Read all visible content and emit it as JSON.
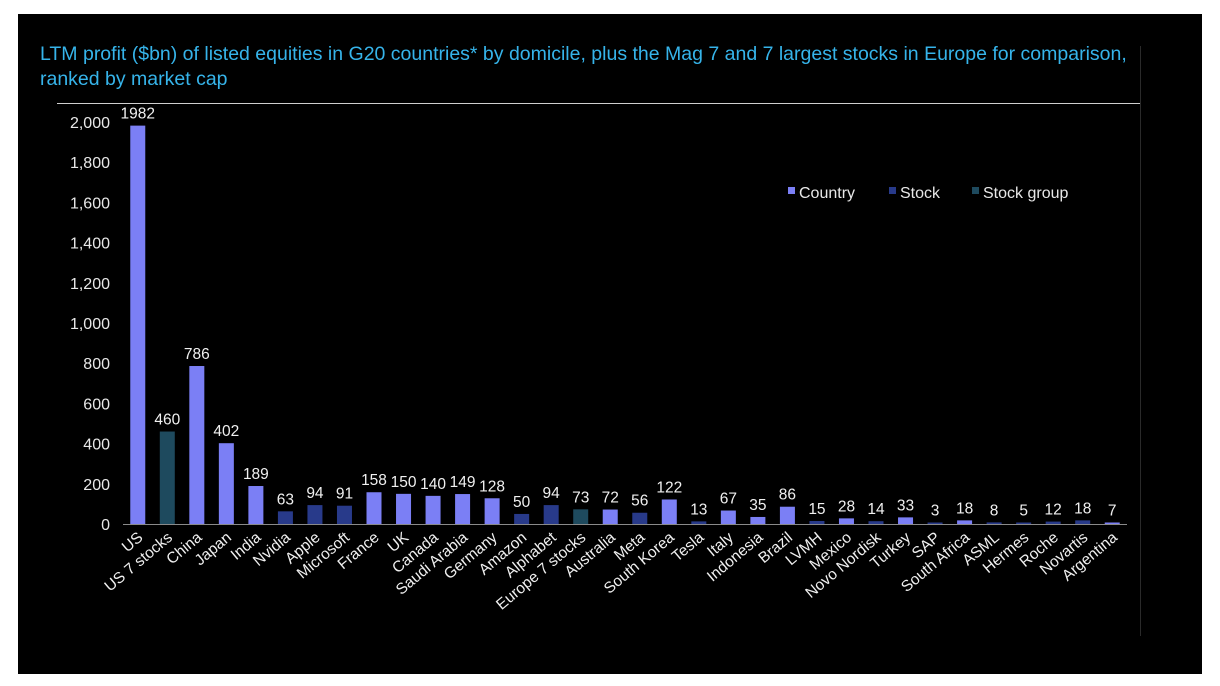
{
  "chart_data": {
    "type": "bar",
    "title": "LTM profit ($bn) of listed equities in G20 countries* by domicile, plus the Mag 7 and 7 largest stocks in Europe for comparison, ranked by market cap",
    "xlabel": "",
    "ylabel": "",
    "ylim": [
      0,
      2000
    ],
    "yticks": [
      "0",
      "200",
      "400",
      "600",
      "800",
      "1,000",
      "1,200",
      "1,400",
      "1,600",
      "1,800",
      "2,000"
    ],
    "categories": [
      "US",
      "US 7 stocks",
      "China",
      "Japan",
      "India",
      "Nvidia",
      "Apple",
      "Microsoft",
      "France",
      "UK",
      "Canada",
      "Saudi Arabia",
      "Germany",
      "Amazon",
      "Alphabet",
      "Europe 7 stocks",
      "Australia",
      "Meta",
      "South Korea",
      "Tesla",
      "Italy",
      "Indonesia",
      "Brazil",
      "LVMH",
      "Mexico",
      "Novo Nordisk",
      "Turkey",
      "SAP",
      "South Africa",
      "ASML",
      "Hermes",
      "Roche",
      "Novartis",
      "Argentina"
    ],
    "values": [
      1982,
      460,
      786,
      402,
      189,
      63,
      94,
      91,
      158,
      150,
      140,
      149,
      128,
      50,
      94,
      73,
      72,
      56,
      122,
      13,
      67,
      35,
      86,
      15,
      28,
      14,
      33,
      3,
      18,
      8,
      5,
      12,
      18,
      7
    ],
    "groups": [
      "Country",
      "Stock group",
      "Country",
      "Country",
      "Country",
      "Stock",
      "Stock",
      "Stock",
      "Country",
      "Country",
      "Country",
      "Country",
      "Country",
      "Stock",
      "Stock",
      "Stock group",
      "Country",
      "Stock",
      "Country",
      "Stock",
      "Country",
      "Country",
      "Country",
      "Stock",
      "Country",
      "Stock",
      "Country",
      "Stock",
      "Country",
      "Stock",
      "Stock",
      "Stock",
      "Stock",
      "Country"
    ],
    "legend": {
      "position": "top-right",
      "items": [
        {
          "name": "Country",
          "color": "#7b7ff5"
        },
        {
          "name": "Stock",
          "color": "#283a8a"
        },
        {
          "name": "Stock group",
          "color": "#1e4a5e"
        }
      ]
    },
    "grid": false
  }
}
